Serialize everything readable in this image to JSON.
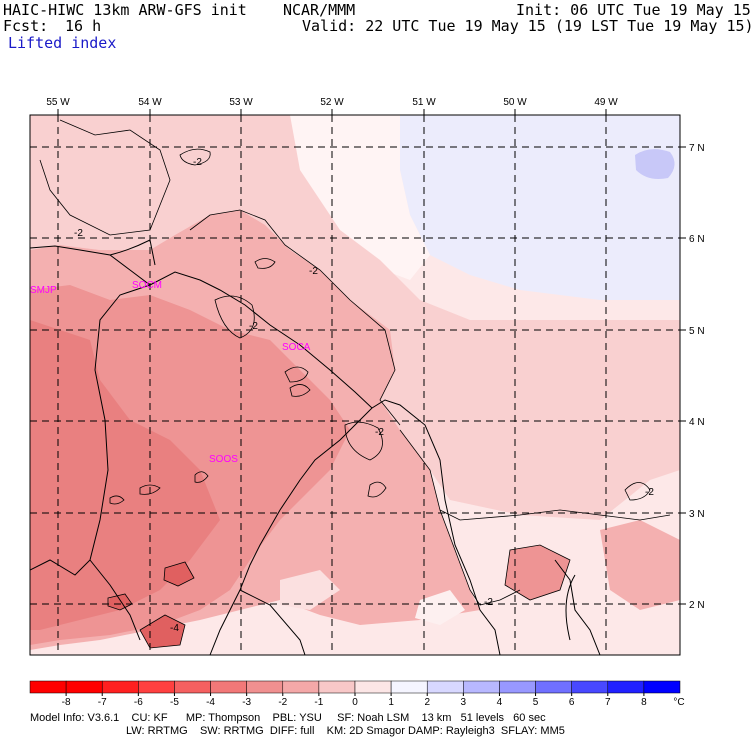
{
  "header": {
    "title_left": "HAIC-HIWC 13km ARW-GFS init    NCAR/MMM",
    "init": "Init: 06 UTC Tue 19 May 15",
    "fcst_label": "Fcst:",
    "fcst_value": "16 h",
    "valid": "Valid: 22 UTC Tue 19 May 15 (19 LST Tue 19 May 15)",
    "field": "Lifted index"
  },
  "map": {
    "lon_labels": [
      "55 W",
      "54 W",
      "53 W",
      "52 W",
      "51 W",
      "50 W",
      "49 W"
    ],
    "lat_labels": [
      "7 N",
      "6 N",
      "5 N",
      "4 N",
      "3 N",
      "2 N"
    ],
    "stations": [
      "SMJP",
      "SOCM",
      "SOCA",
      "SOOS"
    ],
    "contour_labels": [
      "-2",
      "-2",
      "-2",
      "-2",
      "-2",
      "-2",
      "-2",
      "-4"
    ]
  },
  "colorbar": {
    "ticks": [
      "-8",
      "-7",
      "-6",
      "-5",
      "-4",
      "-3",
      "-2",
      "-1",
      "0",
      "1",
      "2",
      "3",
      "4",
      "5",
      "6",
      "7",
      "8"
    ],
    "unit": "°C",
    "colors": [
      "#ff0000",
      "#ff2020",
      "#ff4040",
      "#f56060",
      "#f27878",
      "#f09090",
      "#f4a8a8",
      "#f8c8c8",
      "#fce6e6",
      "#f5f5ff",
      "#d8d8ff",
      "#b8b8ff",
      "#9898ff",
      "#7070ff",
      "#4848ff",
      "#2020ff",
      "#0000ff"
    ]
  },
  "footer": {
    "line1": "Model Info: V3.6.1    CU: KF      MP: Thompson    PBL: YSU     SF: Noah LSM    13 km   51 levels   60 sec",
    "line2": "LW: RRTMG    SW: RRTMG  DIFF: full    KM: 2D Smagor DAMP: Rayleigh3  SFLAY: MM5"
  },
  "legend_colors": {
    "lightest_red": "#fde8e8",
    "light_red": "#f9cccc",
    "mid_red": "#f2a0a0",
    "dark_red": "#e87070",
    "darkest_red": "#e05050",
    "light_blue": "#ececfc",
    "mid_blue": "#c8c8f8"
  }
}
